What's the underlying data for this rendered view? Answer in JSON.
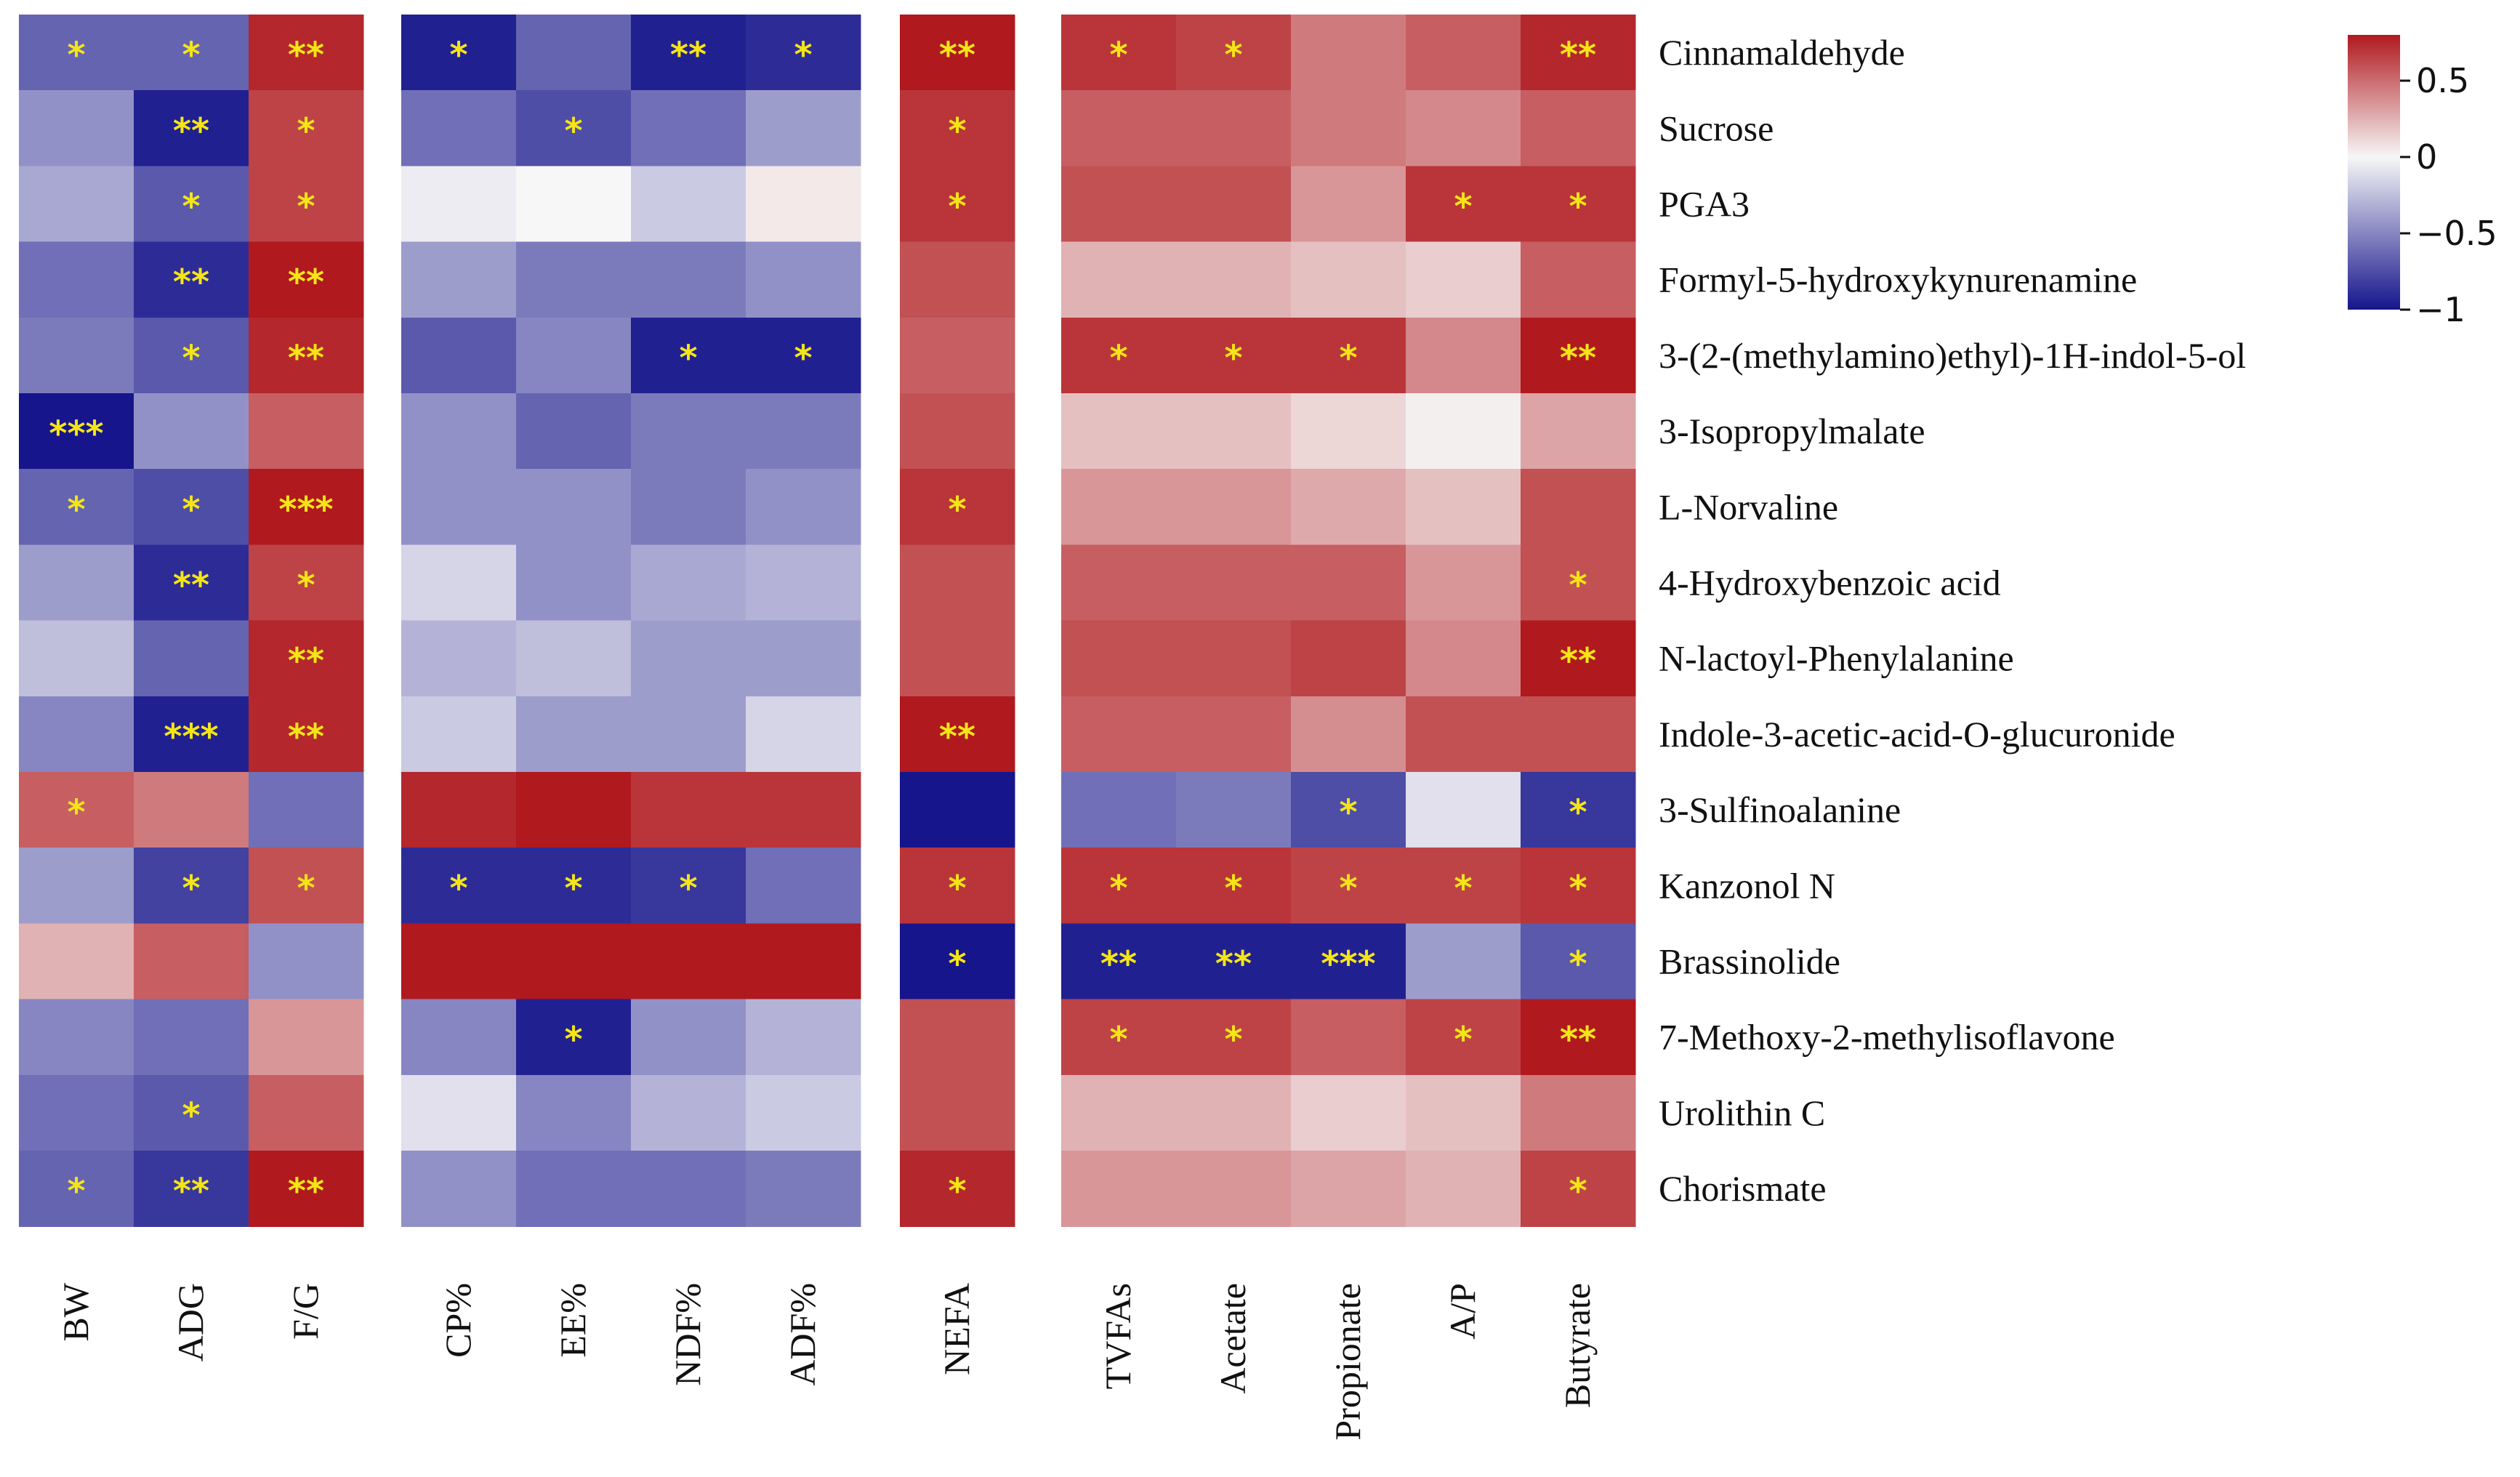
{
  "chart_data": {
    "type": "heatmap",
    "title": "",
    "color_scale": {
      "min": -1,
      "max": 0.8,
      "low_color": "#16158c",
      "mid_color": "#f7f7f7",
      "high_color": "#b0191e",
      "ticks": [
        0.5,
        0,
        -0.5,
        -1
      ],
      "tick_labels": [
        "0.5",
        "0",
        "−0.5",
        "−1"
      ]
    },
    "rows": [
      "Cinnamaldehyde",
      "Sucrose",
      "PGA3",
      "Formyl-5-hydroxykynurenamine",
      "3-(2-(methylamino)ethyl)-1H-indol-5-ol",
      "3-Isopropylmalate",
      "L-Norvaline",
      "4-Hydroxybenzoic acid",
      "N-lactoyl-Phenylalanine",
      "Indole-3-acetic-acid-O-glucuronide",
      "3-Sulfinoalanine",
      "Kanzonol N",
      "Brassinolide",
      "7-Methoxy-2-methylisoflavone",
      "Urolithin C",
      "Chorismate"
    ],
    "panels": [
      {
        "columns": [
          "BW",
          "ADG",
          "F/G"
        ],
        "values": [
          [
            -0.65,
            -0.65,
            0.75
          ],
          [
            -0.45,
            -0.95,
            0.65
          ],
          [
            -0.35,
            -0.7,
            0.65
          ],
          [
            -0.6,
            -0.9,
            0.8
          ],
          [
            -0.55,
            -0.7,
            0.75
          ],
          [
            -1.0,
            -0.45,
            0.55
          ],
          [
            -0.65,
            -0.75,
            0.85
          ],
          [
            -0.4,
            -0.9,
            0.65
          ],
          [
            -0.25,
            -0.65,
            0.75
          ],
          [
            -0.5,
            -0.95,
            0.75
          ],
          [
            0.55,
            0.45,
            -0.6
          ],
          [
            -0.4,
            -0.8,
            0.6
          ],
          [
            0.25,
            0.55,
            -0.45
          ],
          [
            -0.5,
            -0.6,
            0.35
          ],
          [
            -0.6,
            -0.7,
            0.55
          ],
          [
            -0.65,
            -0.85,
            0.8
          ]
        ],
        "stars": [
          [
            "*",
            "*",
            "**"
          ],
          [
            "",
            "**",
            "*"
          ],
          [
            "",
            "*",
            "*"
          ],
          [
            "",
            "**",
            "**"
          ],
          [
            "",
            "*",
            "**"
          ],
          [
            "***",
            "",
            ""
          ],
          [
            "*",
            "*",
            "***"
          ],
          [
            "",
            "**",
            "*"
          ],
          [
            "",
            "",
            "**"
          ],
          [
            "",
            "***",
            "**"
          ],
          [
            "*",
            "",
            ""
          ],
          [
            "",
            "*",
            "*"
          ],
          [
            "",
            "",
            ""
          ],
          [
            "",
            "",
            ""
          ],
          [
            "",
            "*",
            ""
          ],
          [
            "*",
            "**",
            "**"
          ]
        ]
      },
      {
        "columns": [
          "CP%",
          "EE%",
          "NDF%",
          "ADF%"
        ],
        "values": [
          [
            -0.95,
            -0.65,
            -0.95,
            -0.9
          ],
          [
            -0.6,
            -0.75,
            -0.6,
            -0.4
          ],
          [
            -0.05,
            0.0,
            -0.2,
            0.05
          ],
          [
            -0.4,
            -0.55,
            -0.55,
            -0.45
          ],
          [
            -0.7,
            -0.5,
            -0.95,
            -0.95
          ],
          [
            -0.45,
            -0.65,
            -0.55,
            -0.55
          ],
          [
            -0.45,
            -0.45,
            -0.55,
            -0.45
          ],
          [
            -0.15,
            -0.45,
            -0.35,
            -0.3
          ],
          [
            -0.3,
            -0.25,
            -0.4,
            -0.4
          ],
          [
            -0.2,
            -0.4,
            -0.4,
            -0.15
          ],
          [
            0.75,
            0.85,
            0.7,
            0.7
          ],
          [
            -0.9,
            -0.9,
            -0.85,
            -0.6
          ],
          [
            0.8,
            0.8,
            0.85,
            0.85
          ],
          [
            -0.5,
            -0.95,
            -0.45,
            -0.3
          ],
          [
            -0.1,
            -0.5,
            -0.3,
            -0.2
          ],
          [
            -0.45,
            -0.6,
            -0.6,
            -0.55
          ]
        ],
        "stars": [
          [
            "*",
            "",
            "**",
            "*"
          ],
          [
            "",
            "*",
            "",
            ""
          ],
          [
            "",
            "",
            "",
            ""
          ],
          [
            "",
            "",
            "",
            ""
          ],
          [
            "",
            "",
            "*",
            "*"
          ],
          [
            "",
            "",
            "",
            ""
          ],
          [
            "",
            "",
            "",
            ""
          ],
          [
            "",
            "",
            "",
            ""
          ],
          [
            "",
            "",
            "",
            ""
          ],
          [
            "",
            "",
            "",
            ""
          ],
          [
            "",
            "",
            "",
            ""
          ],
          [
            "*",
            "*",
            "*",
            ""
          ],
          [
            "",
            "",
            "",
            ""
          ],
          [
            "",
            "*",
            "",
            ""
          ],
          [
            "",
            "",
            "",
            ""
          ],
          [
            "",
            "",
            "",
            ""
          ]
        ]
      },
      {
        "columns": [
          "NEFA"
        ],
        "values": [
          [
            0.8
          ],
          [
            0.7
          ],
          [
            0.7
          ],
          [
            0.6
          ],
          [
            0.55
          ],
          [
            0.6
          ],
          [
            0.7
          ],
          [
            0.6
          ],
          [
            0.6
          ],
          [
            0.8
          ],
          [
            -1.0
          ],
          [
            0.7
          ],
          [
            -1.0
          ],
          [
            0.6
          ],
          [
            0.6
          ],
          [
            0.75
          ]
        ],
        "stars": [
          [
            "**"
          ],
          [
            "*"
          ],
          [
            "*"
          ],
          [
            ""
          ],
          [
            ""
          ],
          [
            ""
          ],
          [
            "*"
          ],
          [
            ""
          ],
          [
            ""
          ],
          [
            "**"
          ],
          [
            ""
          ],
          [
            "*"
          ],
          [
            "*"
          ],
          [
            ""
          ],
          [
            ""
          ],
          [
            "*"
          ]
        ]
      },
      {
        "columns": [
          "TVFAs",
          "Acetate",
          "Propionate",
          "A/P",
          "Butyrate"
        ],
        "values": [
          [
            0.7,
            0.65,
            0.45,
            0.55,
            0.75
          ],
          [
            0.55,
            0.55,
            0.45,
            0.4,
            0.55
          ],
          [
            0.6,
            0.6,
            0.35,
            0.7,
            0.7
          ],
          [
            0.25,
            0.25,
            0.2,
            0.15,
            0.55
          ],
          [
            0.7,
            0.7,
            0.7,
            0.4,
            0.8
          ],
          [
            0.2,
            0.2,
            0.12,
            0.03,
            0.3
          ],
          [
            0.35,
            0.35,
            0.28,
            0.2,
            0.6
          ],
          [
            0.55,
            0.55,
            0.55,
            0.35,
            0.6
          ],
          [
            0.6,
            0.6,
            0.65,
            0.4,
            0.85
          ],
          [
            0.55,
            0.55,
            0.38,
            0.6,
            0.6
          ],
          [
            -0.6,
            -0.55,
            -0.75,
            -0.1,
            -0.85
          ],
          [
            0.7,
            0.7,
            0.65,
            0.65,
            0.7
          ],
          [
            -0.95,
            -0.95,
            -0.95,
            -0.4,
            -0.7
          ],
          [
            0.65,
            0.65,
            0.55,
            0.65,
            0.8
          ],
          [
            0.25,
            0.25,
            0.15,
            0.2,
            0.45
          ],
          [
            0.35,
            0.35,
            0.3,
            0.25,
            0.65
          ]
        ],
        "stars": [
          [
            "*",
            "*",
            "",
            "",
            "**"
          ],
          [
            "",
            "",
            "",
            "",
            ""
          ],
          [
            "",
            "",
            "",
            "*",
            "*"
          ],
          [
            "",
            "",
            "",
            "",
            ""
          ],
          [
            "*",
            "*",
            "*",
            "",
            "**"
          ],
          [
            "",
            "",
            "",
            "",
            ""
          ],
          [
            "",
            "",
            "",
            "",
            ""
          ],
          [
            "",
            "",
            "",
            "",
            "*"
          ],
          [
            "",
            "",
            "",
            "",
            "**"
          ],
          [
            "",
            "",
            "",
            "",
            ""
          ],
          [
            "",
            "",
            "*",
            "",
            "*"
          ],
          [
            "*",
            "*",
            "*",
            "*",
            "*"
          ],
          [
            "**",
            "**",
            "***",
            "",
            "*"
          ],
          [
            "*",
            "*",
            "",
            "*",
            "**"
          ],
          [
            "",
            "",
            "",
            "",
            ""
          ],
          [
            "",
            "",
            "",
            "",
            "*"
          ]
        ]
      }
    ]
  }
}
